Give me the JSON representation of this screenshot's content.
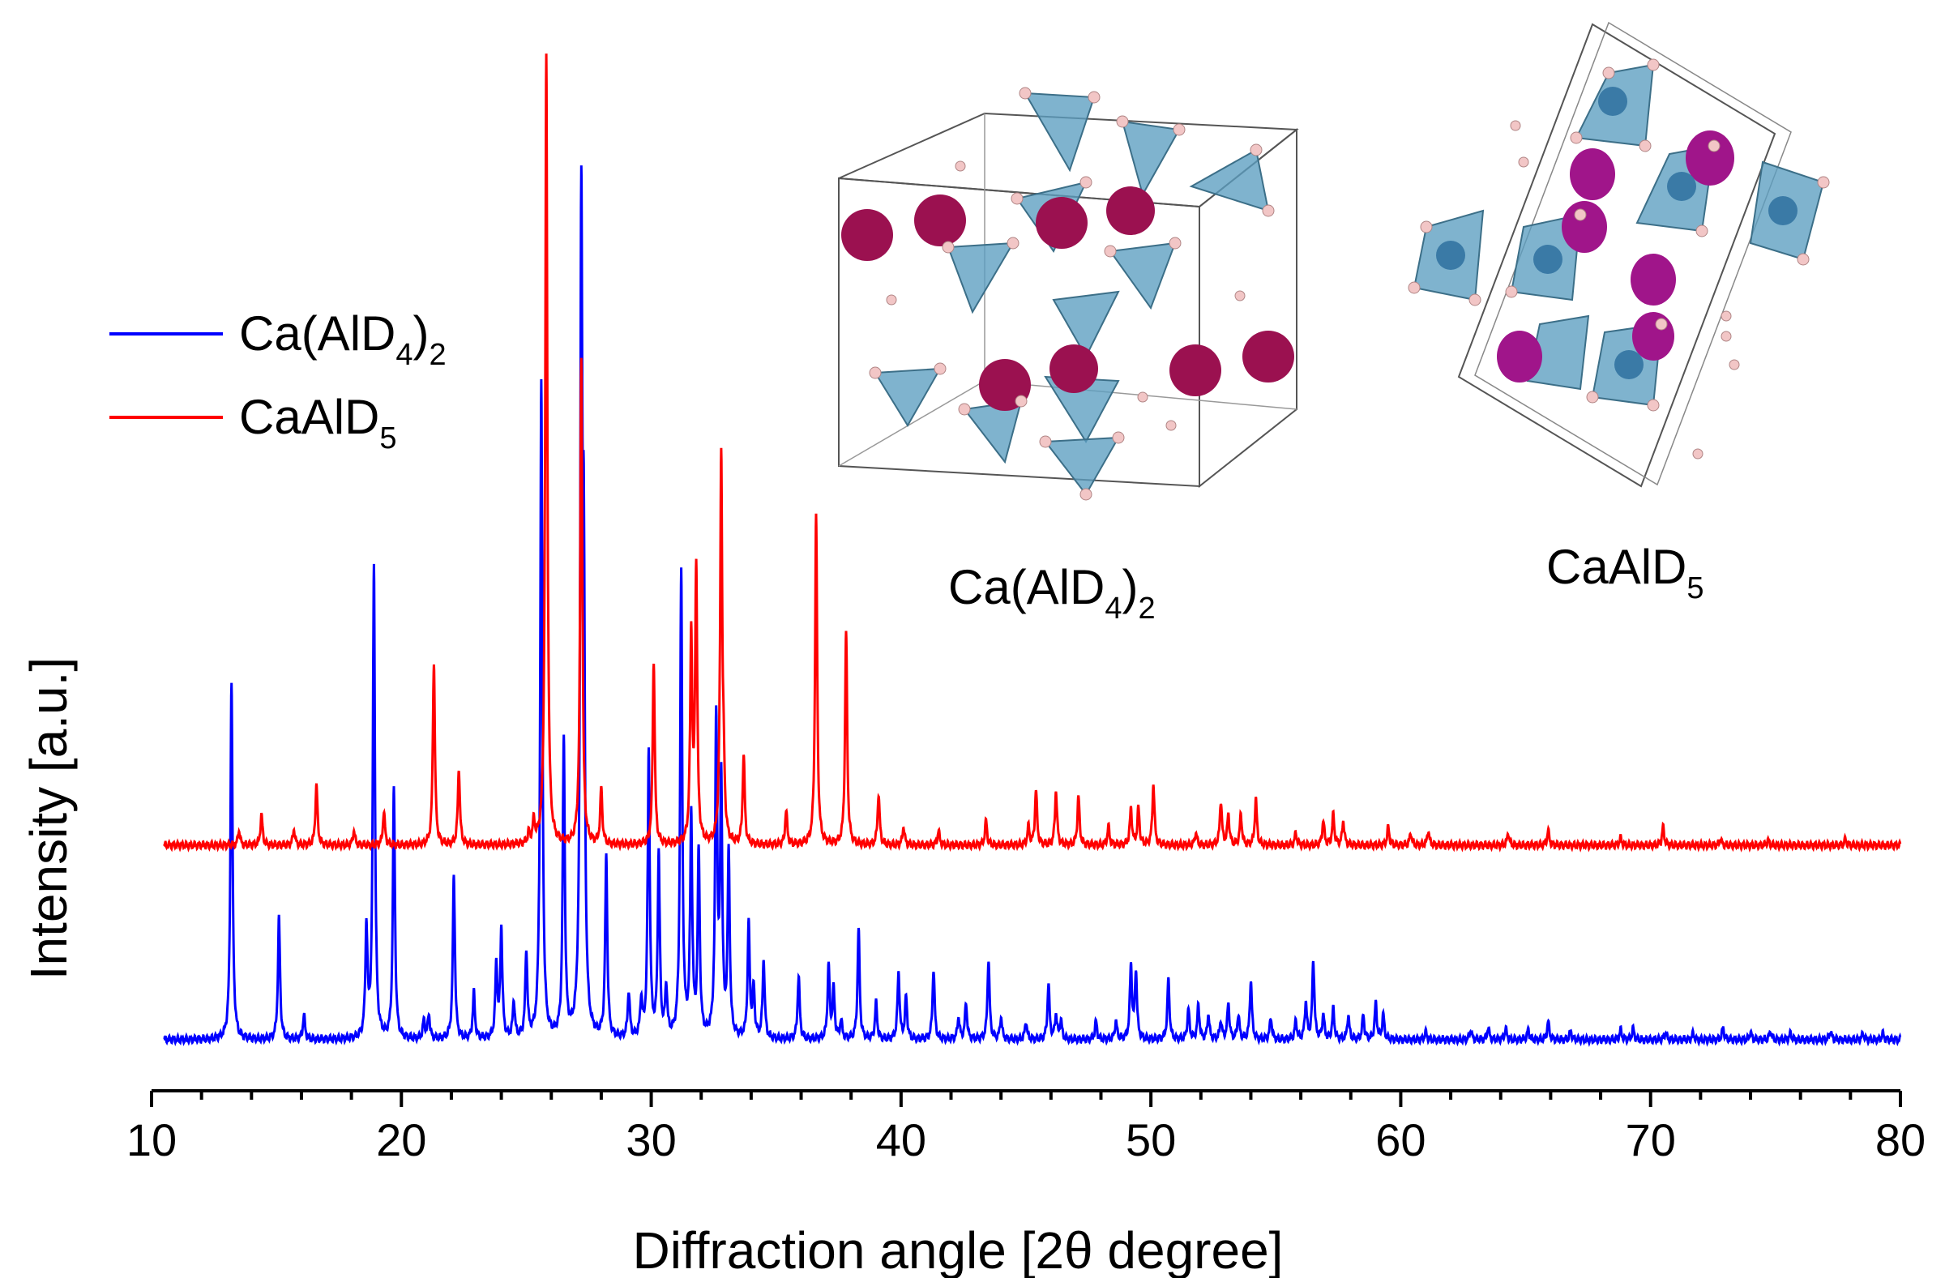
{
  "chart_data": {
    "type": "line",
    "title": "",
    "xlabel": "Diffraction angle [2θ degree]",
    "ylabel": "Intensity [a.u.]",
    "xlim": [
      10,
      80
    ],
    "xticks": [
      10,
      20,
      30,
      40,
      50,
      60,
      70,
      80
    ],
    "grid": false,
    "legend_position": "top-left",
    "series": [
      {
        "name": "Ca(AlD4)2",
        "legend_main": "Ca(AlD",
        "legend_sub1": "4",
        "legend_mid": ")",
        "legend_sub2": "2",
        "color": "#0000ff",
        "baseline": 0,
        "peaks": [
          [
            13.2,
            2.95
          ],
          [
            15.1,
            1.0
          ],
          [
            16.1,
            0.2
          ],
          [
            18.6,
            0.9
          ],
          [
            18.9,
            3.9
          ],
          [
            19.7,
            2.05
          ],
          [
            20.9,
            0.15
          ],
          [
            21.1,
            0.2
          ],
          [
            22.1,
            1.35
          ],
          [
            22.9,
            0.38
          ],
          [
            23.8,
            0.6
          ],
          [
            24.0,
            0.9
          ],
          [
            24.5,
            0.3
          ],
          [
            25.0,
            0.7
          ],
          [
            25.6,
            5.4
          ],
          [
            26.5,
            2.45
          ],
          [
            27.2,
            6.5
          ],
          [
            27.3,
            3.4
          ],
          [
            28.2,
            1.5
          ],
          [
            29.1,
            0.38
          ],
          [
            29.6,
            0.3
          ],
          [
            29.9,
            2.35
          ],
          [
            30.3,
            1.5
          ],
          [
            30.6,
            0.4
          ],
          [
            31.2,
            3.8
          ],
          [
            31.6,
            1.8
          ],
          [
            31.9,
            1.5
          ],
          [
            32.6,
            2.6
          ],
          [
            32.8,
            2.1
          ],
          [
            33.1,
            1.5
          ],
          [
            33.9,
            0.95
          ],
          [
            34.1,
            0.4
          ],
          [
            34.5,
            0.65
          ],
          [
            35.9,
            0.52
          ],
          [
            37.1,
            0.6
          ],
          [
            37.3,
            0.4
          ],
          [
            37.6,
            0.15
          ],
          [
            38.3,
            0.9
          ],
          [
            39.0,
            0.3
          ],
          [
            39.9,
            0.55
          ],
          [
            40.2,
            0.35
          ],
          [
            41.3,
            0.58
          ],
          [
            42.3,
            0.18
          ],
          [
            42.6,
            0.3
          ],
          [
            43.5,
            0.66
          ],
          [
            44.0,
            0.18
          ],
          [
            45.0,
            0.15
          ],
          [
            45.9,
            0.45
          ],
          [
            46.2,
            0.2
          ],
          [
            46.4,
            0.15
          ],
          [
            47.8,
            0.15
          ],
          [
            48.6,
            0.15
          ],
          [
            49.2,
            0.6
          ],
          [
            49.4,
            0.55
          ],
          [
            50.7,
            0.5
          ],
          [
            51.5,
            0.25
          ],
          [
            51.9,
            0.28
          ],
          [
            52.3,
            0.2
          ],
          [
            52.8,
            0.15
          ],
          [
            53.1,
            0.3
          ],
          [
            53.5,
            0.2
          ],
          [
            54.0,
            0.48
          ],
          [
            54.8,
            0.18
          ],
          [
            55.8,
            0.15
          ],
          [
            56.2,
            0.3
          ],
          [
            56.5,
            0.65
          ],
          [
            56.9,
            0.2
          ],
          [
            57.3,
            0.25
          ],
          [
            57.9,
            0.2
          ],
          [
            58.5,
            0.2
          ],
          [
            59.0,
            0.3
          ],
          [
            59.3,
            0.2
          ],
          [
            61.0,
            0.06
          ],
          [
            62.8,
            0.08
          ],
          [
            63.5,
            0.1
          ],
          [
            64.2,
            0.09
          ],
          [
            65.1,
            0.08
          ],
          [
            65.9,
            0.15
          ],
          [
            66.8,
            0.07
          ],
          [
            68.8,
            0.08
          ],
          [
            69.3,
            0.09
          ],
          [
            70.6,
            0.06
          ],
          [
            71.7,
            0.05
          ],
          [
            72.9,
            0.1
          ],
          [
            74.0,
            0.06
          ],
          [
            74.8,
            0.07
          ],
          [
            75.6,
            0.05
          ],
          [
            77.2,
            0.07
          ],
          [
            78.5,
            0.05
          ],
          [
            79.3,
            0.05
          ]
        ]
      },
      {
        "name": "CaAlD5",
        "legend_main": "CaAlD",
        "legend_sub1": "5",
        "color": "#ff0000",
        "baseline": 1.6,
        "peaks": [
          [
            13.5,
            0.12
          ],
          [
            14.4,
            0.25
          ],
          [
            15.7,
            0.13
          ],
          [
            16.6,
            0.5
          ],
          [
            18.1,
            0.12
          ],
          [
            19.3,
            0.28
          ],
          [
            21.3,
            1.5
          ],
          [
            22.3,
            0.63
          ],
          [
            25.1,
            0.08
          ],
          [
            25.3,
            0.17
          ],
          [
            25.8,
            6.5
          ],
          [
            27.2,
            4.0
          ],
          [
            28.0,
            0.46
          ],
          [
            30.1,
            1.5
          ],
          [
            31.6,
            1.7
          ],
          [
            31.8,
            2.25
          ],
          [
            32.8,
            3.2
          ],
          [
            32.9,
            0.4
          ],
          [
            33.7,
            0.73
          ],
          [
            35.4,
            0.28
          ],
          [
            36.6,
            2.7
          ],
          [
            37.8,
            1.75
          ],
          [
            39.1,
            0.42
          ],
          [
            40.1,
            0.15
          ],
          [
            41.5,
            0.12
          ],
          [
            43.4,
            0.2
          ],
          [
            45.1,
            0.15
          ],
          [
            45.4,
            0.45
          ],
          [
            46.2,
            0.45
          ],
          [
            47.1,
            0.4
          ],
          [
            48.3,
            0.15
          ],
          [
            49.2,
            0.3
          ],
          [
            49.5,
            0.3
          ],
          [
            50.1,
            0.5
          ],
          [
            51.8,
            0.1
          ],
          [
            52.8,
            0.36
          ],
          [
            53.1,
            0.25
          ],
          [
            53.6,
            0.25
          ],
          [
            54.2,
            0.38
          ],
          [
            55.8,
            0.1
          ],
          [
            56.9,
            0.2
          ],
          [
            57.3,
            0.25
          ],
          [
            57.7,
            0.2
          ],
          [
            59.5,
            0.15
          ],
          [
            60.4,
            0.1
          ],
          [
            61.1,
            0.12
          ],
          [
            64.3,
            0.1
          ],
          [
            65.9,
            0.12
          ],
          [
            68.8,
            0.06
          ],
          [
            70.5,
            0.15
          ],
          [
            72.8,
            0.05
          ],
          [
            74.7,
            0.04
          ],
          [
            77.8,
            0.05
          ]
        ]
      }
    ],
    "structure_labels": [
      {
        "main": "Ca(AlD",
        "sub1": "4",
        "mid": ")",
        "sub2": "2"
      },
      {
        "main": "CaAlD",
        "sub1": "5"
      }
    ]
  }
}
